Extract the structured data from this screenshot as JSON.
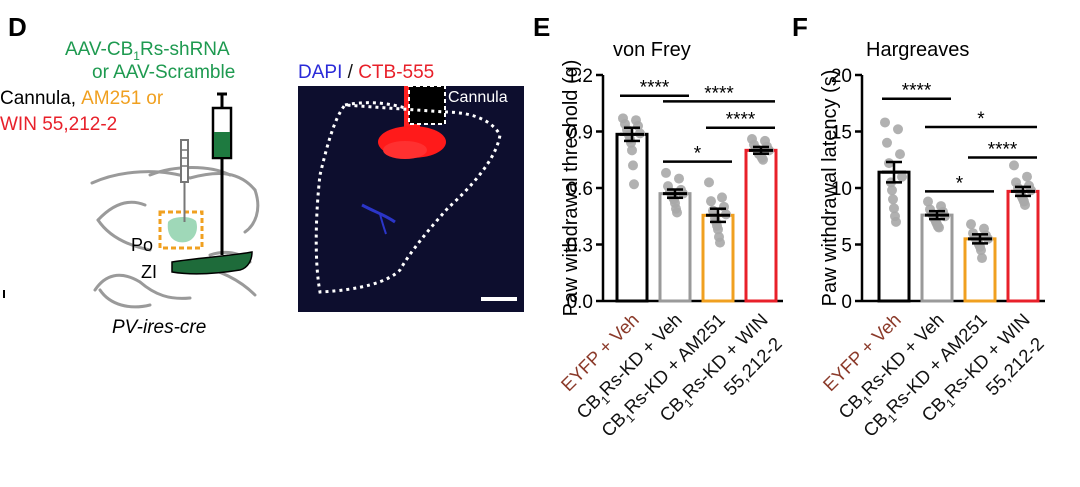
{
  "panel_d": {
    "letter": "D",
    "virus_line1": "AAV-CB",
    "virus_sub1": "1",
    "virus_line1_rest": "Rs-shRNA",
    "virus_line2": "or AAV-Scramble",
    "cannula_prefix": "Cannula,",
    "drug1": "AM251",
    "drug_or": "or",
    "drug2": "WIN 55,212-2",
    "region_po": "Po",
    "region_zi": "ZI",
    "mouse_line": "PV-ires-cre",
    "micrograph_label_dapi": "DAPI",
    "micrograph_label_sep": " / ",
    "micrograph_label_ctb": "CTB-555",
    "micrograph_cannula": "Cannula",
    "colors": {
      "green": "#1e9a50",
      "orange": "#f0a020",
      "red": "#e8202a",
      "blue": "#2a2ad8"
    }
  },
  "chart_data": [
    {
      "type": "bar",
      "panel_letter": "E",
      "title": "von Frey",
      "ylabel": "Paw withdrawal threshold (g)",
      "ylim": [
        0,
        1.2
      ],
      "yticks": [
        "0.0",
        "0.3",
        "0.6",
        "0.9",
        "1.2"
      ],
      "ytick_values": [
        0,
        0.3,
        0.6,
        0.9,
        1.2
      ],
      "categories": [
        {
          "pre": "EYFP + Veh",
          "sub": "",
          "post": "",
          "line2": "",
          "color": "#000000",
          "labelColor": "#8b3a2a"
        },
        {
          "pre": "CB",
          "sub": "1",
          "post": "Rs-KD + Veh",
          "line2": "",
          "color": "#9a9a9a",
          "labelColor": "#111111"
        },
        {
          "pre": "CB",
          "sub": "1",
          "post": "Rs-KD + AM251",
          "line2": "",
          "color": "#f0a020",
          "labelColor": "#111111"
        },
        {
          "pre": "CB",
          "sub": "1",
          "post": "Rs-KD + WIN",
          "line2": "55,212-2",
          "color": "#e8202a",
          "labelColor": "#111111"
        }
      ],
      "values": [
        0.885,
        0.57,
        0.455,
        0.8
      ],
      "sem": [
        0.035,
        0.022,
        0.035,
        0.018
      ],
      "points": [
        [
          0.97,
          0.96,
          0.94,
          0.93,
          0.91,
          0.89,
          0.88,
          0.86,
          0.84,
          0.8,
          0.72,
          0.62
        ],
        [
          0.68,
          0.65,
          0.61,
          0.59,
          0.58,
          0.57,
          0.56,
          0.55,
          0.54,
          0.52,
          0.49,
          0.47
        ],
        [
          0.63,
          0.55,
          0.53,
          0.5,
          0.48,
          0.46,
          0.44,
          0.42,
          0.4,
          0.38,
          0.34,
          0.31
        ],
        [
          0.86,
          0.85,
          0.83,
          0.82,
          0.81,
          0.8,
          0.79,
          0.78,
          0.78,
          0.77,
          0.76,
          0.75
        ]
      ],
      "significance": [
        {
          "from": 0,
          "to": 1,
          "y": 1.09,
          "label": "****"
        },
        {
          "from": 1,
          "to": 3,
          "y": 1.06,
          "label": "****"
        },
        {
          "from": 2,
          "to": 3,
          "y": 0.92,
          "label": "****"
        },
        {
          "from": 1,
          "to": 2,
          "y": 0.74,
          "label": "*"
        }
      ]
    },
    {
      "type": "bar",
      "panel_letter": "F",
      "title": "Hargreaves",
      "ylabel": "Paw withdrawal latency (s)",
      "ylim": [
        0,
        20
      ],
      "yticks": [
        "0",
        "5",
        "10",
        "15",
        "20"
      ],
      "ytick_values": [
        0,
        5,
        10,
        15,
        20
      ],
      "categories": [
        {
          "pre": "EYFP + Veh",
          "sub": "",
          "post": "",
          "line2": "",
          "color": "#000000",
          "labelColor": "#8b3a2a"
        },
        {
          "pre": "CB",
          "sub": "1",
          "post": "Rs-KD + Veh",
          "line2": "",
          "color": "#9a9a9a",
          "labelColor": "#111111"
        },
        {
          "pre": "CB",
          "sub": "1",
          "post": "Rs-KD + AM251",
          "line2": "",
          "color": "#f0a020",
          "labelColor": "#111111"
        },
        {
          "pre": "CB",
          "sub": "1",
          "post": "Rs-KD + WIN",
          "line2": "55,212-2",
          "color": "#e8202a",
          "labelColor": "#111111"
        }
      ],
      "values": [
        11.4,
        7.6,
        5.5,
        9.7
      ],
      "sem": [
        0.9,
        0.35,
        0.4,
        0.4
      ],
      "points": [
        [
          15.8,
          15.2,
          14.0,
          13.0,
          12.2,
          11.0,
          10.5,
          9.8,
          9.0,
          8.2,
          7.5,
          7.0
        ],
        [
          8.8,
          8.4,
          8.1,
          7.9,
          7.7,
          7.5,
          7.4,
          7.2,
          7.0,
          6.8,
          6.6,
          6.5
        ],
        [
          6.8,
          6.4,
          6.0,
          5.8,
          5.6,
          5.5,
          5.4,
          5.2,
          5.0,
          4.8,
          4.5,
          3.8
        ],
        [
          12.0,
          11.0,
          10.5,
          10.2,
          10.0,
          9.8,
          9.6,
          9.4,
          9.2,
          9.0,
          8.8,
          8.5
        ]
      ],
      "significance": [
        {
          "from": 0,
          "to": 1,
          "y": 17.9,
          "label": "****"
        },
        {
          "from": 1,
          "to": 3,
          "y": 15.4,
          "label": "*"
        },
        {
          "from": 2,
          "to": 3,
          "y": 12.7,
          "label": "****"
        },
        {
          "from": 1,
          "to": 2,
          "y": 9.7,
          "label": "*"
        }
      ]
    }
  ]
}
